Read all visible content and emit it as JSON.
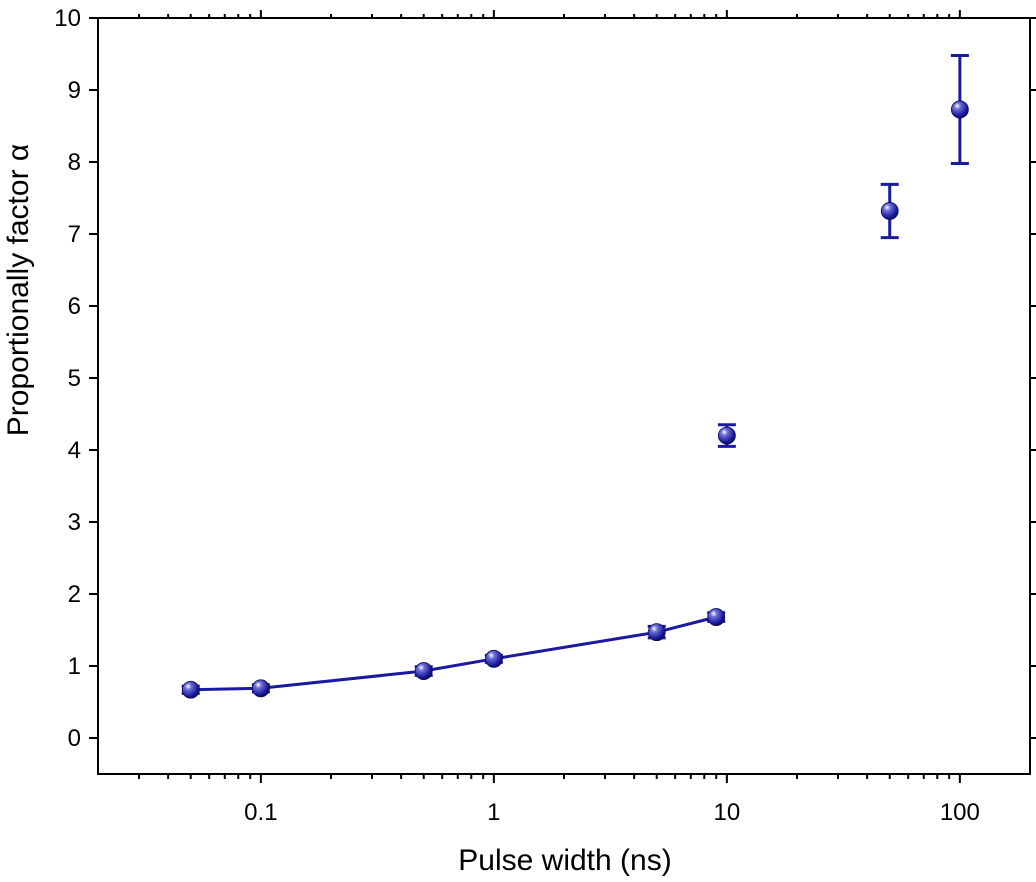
{
  "chart_data": {
    "type": "scatter",
    "title": "",
    "xlabel": "Pulse width (ns)",
    "ylabel": "Proportionally factor α",
    "x_scale": "log",
    "xlim": [
      0.02,
      200
    ],
    "ylim": [
      -0.5,
      10
    ],
    "x_ticks": [
      0.1,
      1,
      10,
      100
    ],
    "x_tick_labels": [
      "0.1",
      "1",
      "10",
      "100"
    ],
    "y_ticks": [
      0,
      1,
      2,
      3,
      4,
      5,
      6,
      7,
      8,
      9,
      10
    ],
    "y_tick_labels": [
      "0",
      "1",
      "2",
      "3",
      "4",
      "5",
      "6",
      "7",
      "8",
      "9",
      "10"
    ],
    "grid": false,
    "legend": "none",
    "marker_color": "#1a1aa0",
    "series": [
      {
        "points": [
          {
            "x": 0.05,
            "y": 0.67,
            "err": 0.05
          },
          {
            "x": 0.1,
            "y": 0.69,
            "err": 0.05
          },
          {
            "x": 0.5,
            "y": 0.93,
            "err": 0.06
          },
          {
            "x": 1,
            "y": 1.1,
            "err": 0.05
          },
          {
            "x": 5,
            "y": 1.47,
            "err": 0.08
          },
          {
            "x": 9,
            "y": 1.68,
            "err": 0.06
          },
          {
            "x": 10,
            "y": 4.2,
            "err": 0.15
          },
          {
            "x": 50,
            "y": 7.32,
            "err": 0.37
          },
          {
            "x": 100,
            "y": 8.73,
            "err": 0.75
          }
        ],
        "connected_points": [
          0,
          1,
          2,
          3,
          4,
          5
        ]
      }
    ]
  }
}
